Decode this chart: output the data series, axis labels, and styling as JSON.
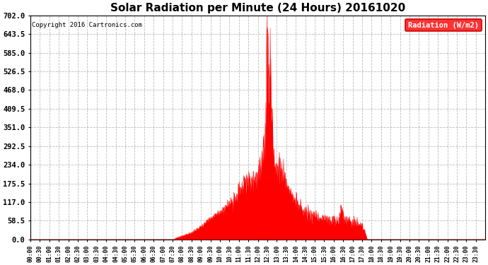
{
  "title": "Solar Radiation per Minute (24 Hours) 20161020",
  "copyright": "Copyright 2016 Cartronics.com",
  "fill_color": "#FF0000",
  "line_color": "#FF0000",
  "background_color": "#FFFFFF",
  "grid_color": "#AAAAAA",
  "yticks": [
    0.0,
    58.5,
    117.0,
    175.5,
    234.0,
    292.5,
    351.0,
    409.5,
    468.0,
    526.5,
    585.0,
    643.5,
    702.0
  ],
  "ymax": 702.0,
  "ymin": 0.0,
  "legend_label": "Radiation (W/m2)",
  "legend_bg": "#FF0000",
  "legend_text_color": "#FFFFFF",
  "sunrise_min": 455,
  "sunset_min": 1065,
  "peak_min": 750,
  "peak_val": 702.0
}
